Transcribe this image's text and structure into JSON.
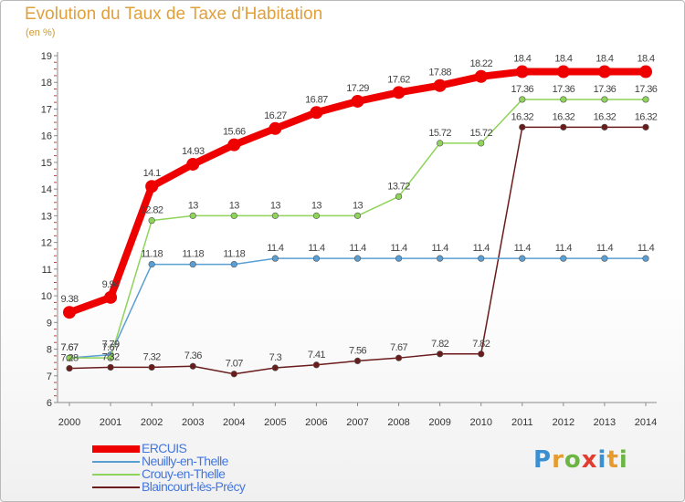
{
  "title": "Evolution du Taux de Taxe d'Habitation",
  "subtitle": "(en %)",
  "logo": {
    "letters": [
      "P",
      "r",
      "o",
      "x",
      "i",
      "t",
      "i"
    ],
    "colors": [
      "#3a8fd0",
      "#e59b2e",
      "#6bb642",
      "#e03c2f",
      "#3a8fd0",
      "#e59b2e",
      "#6bb642"
    ]
  },
  "chart_data": {
    "type": "line",
    "categories": [
      "2000",
      "2001",
      "2002",
      "2003",
      "2004",
      "2005",
      "2006",
      "2007",
      "2008",
      "2009",
      "2010",
      "2011",
      "2012",
      "2013",
      "2014"
    ],
    "ylim": [
      6,
      19
    ],
    "yticks": [
      "6",
      "7",
      "8",
      "9",
      "10",
      "11",
      "12",
      "13",
      "14",
      "15",
      "16",
      "17",
      "18",
      "19"
    ],
    "grid": false,
    "legend_position": "bottom-left",
    "series": [
      {
        "name": "Blaincourt-lès-Précy",
        "color": "#6a1b1b",
        "values": [
          7.28,
          7.32,
          7.32,
          7.36,
          7.07,
          7.3,
          7.41,
          7.56,
          7.67,
          7.82,
          7.82,
          16.32,
          16.32,
          16.32,
          16.32
        ],
        "labels": [
          "7.28",
          "7.32",
          "7.32",
          "7.36",
          "7.07",
          "7.3",
          "7.41",
          "7.56",
          "7.67",
          "7.82",
          "7.82",
          "16.32",
          "16.32",
          "16.32",
          "16.32"
        ]
      },
      {
        "name": "Neuilly-en-Thelle",
        "color": "#5a9fd4",
        "values": [
          7.67,
          7.79,
          11.18,
          11.18,
          11.18,
          11.4,
          11.4,
          11.4,
          11.4,
          11.4,
          11.4,
          11.4,
          11.4,
          11.4,
          11.4
        ],
        "labels": [
          "7.67",
          "7.79",
          "11.18",
          "11.18",
          "11.18",
          "11.4",
          "11.4",
          "11.4",
          "11.4",
          "11.4",
          "11.4",
          "11.4",
          "11.4",
          "11.4",
          "11.4"
        ]
      },
      {
        "name": "Crouy-en-Thelle",
        "color": "#8fd45a",
        "values": [
          7.67,
          7.67,
          12.82,
          13,
          13,
          13,
          13,
          13,
          13.72,
          15.72,
          15.72,
          17.36,
          17.36,
          17.36,
          17.36
        ],
        "labels": [
          "7.67",
          "7.67",
          "12.82",
          "13",
          "13",
          "13",
          "13",
          "13",
          "13.72",
          "15.72",
          "15.72",
          "17.36",
          "17.36",
          "17.36",
          "17.36"
        ]
      },
      {
        "name": "ERCUIS",
        "color": "#ee0000",
        "values": [
          9.38,
          9.94,
          14.1,
          14.93,
          15.66,
          16.27,
          16.87,
          17.29,
          17.62,
          17.88,
          18.22,
          18.4,
          18.4,
          18.4,
          18.4
        ],
        "labels": [
          "9.38",
          "9.94",
          "14.1",
          "14.93",
          "15.66",
          "16.27",
          "16.87",
          "17.29",
          "17.62",
          "17.88",
          "18.22",
          "18.4",
          "18.4",
          "18.4",
          "18.4"
        ]
      }
    ],
    "legend": [
      "ERCUIS",
      "Neuilly-en-Thelle",
      "Crouy-en-Thelle",
      "Blaincourt-lès-Précy"
    ]
  }
}
